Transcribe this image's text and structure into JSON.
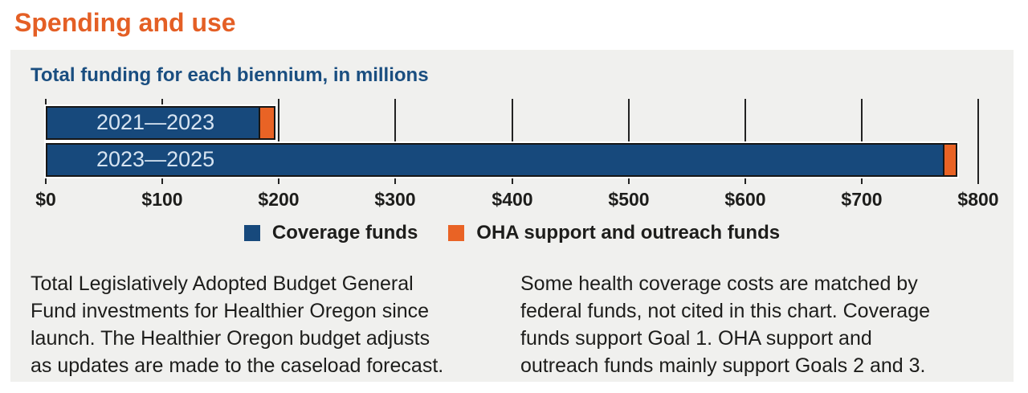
{
  "page": {
    "title": "Spending and use"
  },
  "chart": {
    "subtitle": "Total funding for each biennium, in millions"
  },
  "chart_data": {
    "type": "bar",
    "orientation": "horizontal",
    "stacked": true,
    "title": "Total funding for each biennium, in millions",
    "units": "USD millions",
    "categories": [
      "2021—2023",
      "2023—2025"
    ],
    "series": [
      {
        "name": "Coverage funds",
        "color": "#17497c",
        "values": [
          184,
          771
        ]
      },
      {
        "name": "OHA support and outreach funds",
        "color": "#e96325",
        "values": [
          13,
          11
        ]
      }
    ],
    "totals": [
      197,
      782
    ],
    "xlim": [
      0,
      800
    ],
    "x_ticks": [
      0,
      100,
      200,
      300,
      400,
      500,
      600,
      700,
      800
    ],
    "x_tick_labels": [
      "$0",
      "$100",
      "$200",
      "$300",
      "$400",
      "$500",
      "$600",
      "$700",
      "$800"
    ],
    "grid": "vertical gridlines at $100 intervals",
    "legend_position": "bottom-center"
  },
  "notes": {
    "left": "Total Legislatively Adopted Budget General\nFund investments for Healthier Oregon since\nlaunch. The Healthier Oregon budget adjusts\nas updates are made to the caseload forecast.",
    "right": "Some health coverage costs are matched by\nfederal funds, not cited in this chart. Coverage\nfunds support Goal 1. OHA support and\noutreach funds mainly support Goals 2 and 3."
  },
  "colors": {
    "title_orange": "#e45f25",
    "subtitle_blue": "#1a4e80",
    "coverage_blue": "#17497c",
    "oha_orange": "#e96325",
    "panel_background": "#f0f0ee",
    "gridline": "#222222",
    "bar_border": "#161616",
    "bar_label_text": "#d7e4f1",
    "body_text": "#1d1d1b"
  }
}
